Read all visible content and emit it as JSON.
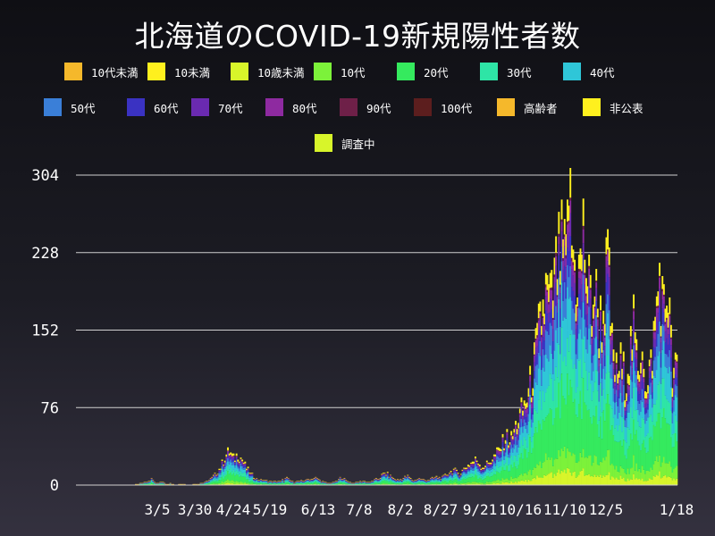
{
  "chart_data": {
    "type": "bar",
    "stacked": true,
    "title": "北海道のCOVID-19新規陽性者数",
    "xlabel": "",
    "ylabel": "",
    "ylim": [
      0,
      304
    ],
    "yticks": [
      0,
      76,
      152,
      228,
      304
    ],
    "ytick_labels": [
      "0",
      "76",
      "152",
      "228",
      "304"
    ],
    "xtick_labels": [
      "3/5",
      "3/30",
      "4/24",
      "5/19",
      "6/13",
      "7/8",
      "8/2",
      "8/27",
      "9/21",
      "10/16",
      "11/10",
      "12/5",
      "1/18"
    ],
    "grid": "horizontal",
    "legend_position": "top",
    "legend": [
      {
        "label": "10代未満",
        "color": "#f5b82b"
      },
      {
        "label": "10未満",
        "color": "#fff01e"
      },
      {
        "label": "10歳未満",
        "color": "#d8f52a"
      },
      {
        "label": "10代",
        "color": "#7cf23a"
      },
      {
        "label": "20代",
        "color": "#35ea5e"
      },
      {
        "label": "30代",
        "color": "#2ee5a6"
      },
      {
        "label": "40代",
        "color": "#2fc6d8"
      },
      {
        "label": "50代",
        "color": "#3a7fd8"
      },
      {
        "label": "60代",
        "color": "#3a32c2"
      },
      {
        "label": "70代",
        "color": "#6a2ab0"
      },
      {
        "label": "80代",
        "color": "#8e2aa0"
      },
      {
        "label": "90代",
        "color": "#6e2048"
      },
      {
        "label": "100代",
        "color": "#5c1e1e"
      },
      {
        "label": "高齢者",
        "color": "#f5b82b"
      },
      {
        "label": "非公表",
        "color": "#fff01e"
      },
      {
        "label": "調査中",
        "color": "#d8f52a"
      }
    ],
    "series_order_bottom_to_top": [
      "10歳未満",
      "10代",
      "20代",
      "30代",
      "40代",
      "50代",
      "60代",
      "70代",
      "80代",
      "90代",
      "非公表"
    ],
    "keypoints": [
      [
        0,
        0
      ],
      [
        40,
        0
      ],
      [
        42,
        1
      ],
      [
        48,
        3
      ],
      [
        52,
        6
      ],
      [
        55,
        2
      ],
      [
        60,
        4
      ],
      [
        62,
        1
      ],
      [
        65,
        2
      ],
      [
        68,
        0
      ],
      [
        72,
        1
      ],
      [
        78,
        0
      ],
      [
        88,
        2
      ],
      [
        92,
        5
      ],
      [
        96,
        10
      ],
      [
        100,
        18
      ],
      [
        103,
        28
      ],
      [
        106,
        33
      ],
      [
        109,
        26
      ],
      [
        112,
        31
      ],
      [
        115,
        25
      ],
      [
        118,
        17
      ],
      [
        121,
        11
      ],
      [
        125,
        6
      ],
      [
        130,
        5
      ],
      [
        136,
        3
      ],
      [
        142,
        4
      ],
      [
        146,
        7
      ],
      [
        150,
        3
      ],
      [
        156,
        4
      ],
      [
        162,
        6
      ],
      [
        166,
        7
      ],
      [
        170,
        4
      ],
      [
        174,
        2
      ],
      [
        180,
        3
      ],
      [
        184,
        8
      ],
      [
        188,
        4
      ],
      [
        192,
        2
      ],
      [
        198,
        4
      ],
      [
        204,
        3
      ],
      [
        210,
        7
      ],
      [
        214,
        12
      ],
      [
        218,
        9
      ],
      [
        222,
        5
      ],
      [
        226,
        6
      ],
      [
        230,
        9
      ],
      [
        234,
        4
      ],
      [
        238,
        7
      ],
      [
        242,
        5
      ],
      [
        246,
        6
      ],
      [
        250,
        8
      ],
      [
        254,
        7
      ],
      [
        258,
        12
      ],
      [
        262,
        15
      ],
      [
        266,
        11
      ],
      [
        270,
        18
      ],
      [
        274,
        22
      ],
      [
        278,
        25
      ],
      [
        282,
        18
      ],
      [
        286,
        22
      ],
      [
        290,
        28
      ],
      [
        294,
        35
      ],
      [
        298,
        48
      ],
      [
        302,
        45
      ],
      [
        306,
        62
      ],
      [
        310,
        75
      ],
      [
        314,
        90
      ],
      [
        318,
        120
      ],
      [
        322,
        160
      ],
      [
        326,
        190
      ],
      [
        330,
        180
      ],
      [
        334,
        220
      ],
      [
        338,
        235
      ],
      [
        340,
        212
      ],
      [
        342,
        300
      ],
      [
        344,
        240
      ],
      [
        347,
        205
      ],
      [
        350,
        215
      ],
      [
        352,
        250
      ],
      [
        355,
        200
      ],
      [
        358,
        180
      ],
      [
        360,
        195
      ],
      [
        363,
        162
      ],
      [
        366,
        170
      ],
      [
        369,
        225
      ],
      [
        372,
        135
      ],
      [
        375,
        110
      ],
      [
        378,
        120
      ],
      [
        381,
        105
      ],
      [
        384,
        128
      ],
      [
        387,
        155
      ],
      [
        390,
        110
      ],
      [
        393,
        150
      ],
      [
        396,
        85
      ],
      [
        399,
        120
      ],
      [
        402,
        160
      ],
      [
        405,
        210
      ],
      [
        408,
        170
      ],
      [
        411,
        195
      ],
      [
        414,
        105
      ],
      [
        417,
        115
      ]
    ]
  }
}
